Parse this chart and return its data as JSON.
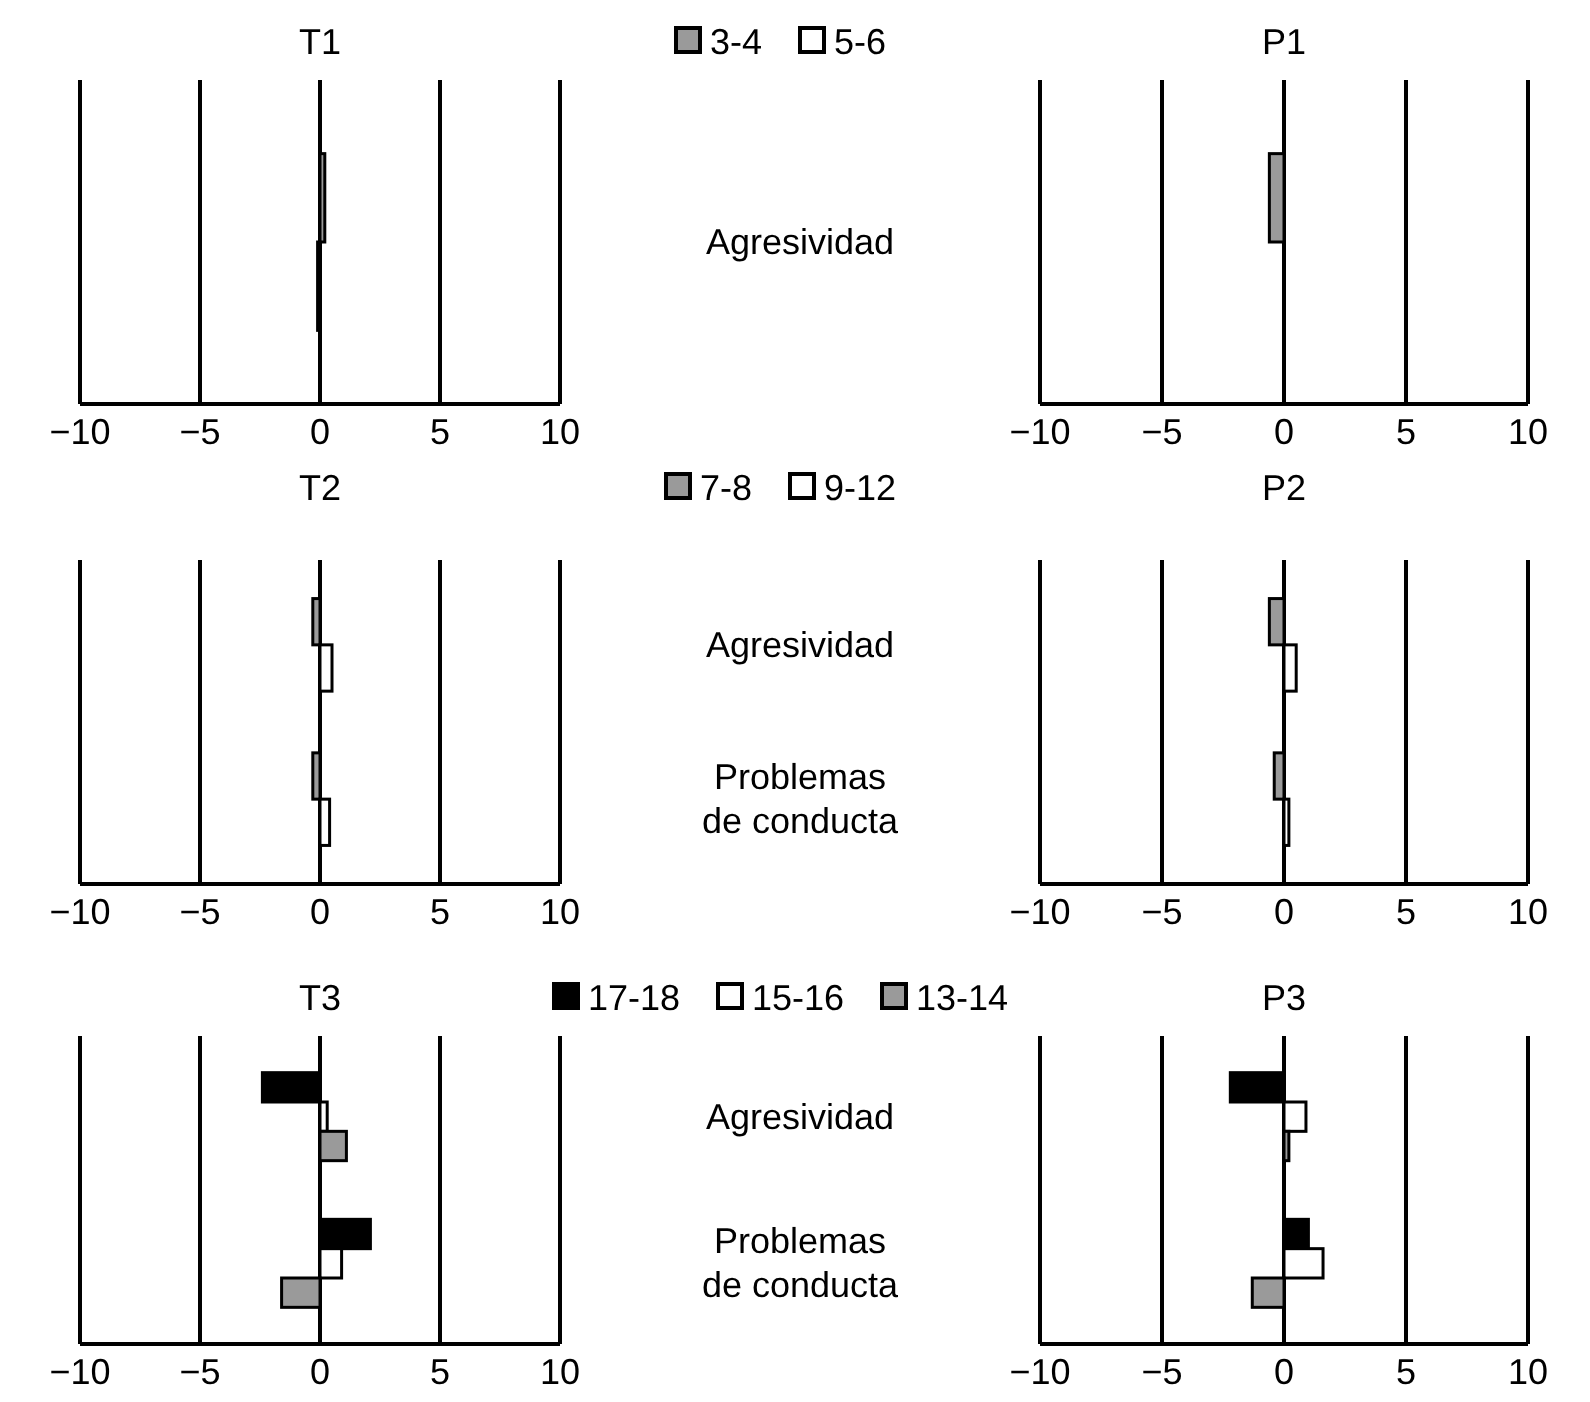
{
  "chart_data": [
    {
      "type": "bar",
      "orientation": "horizontal",
      "title": "T1",
      "categories": [
        null
      ],
      "xlim": [
        -10,
        10
      ],
      "xticks": [
        -10,
        -5,
        0,
        5,
        10
      ],
      "grid": "x",
      "legend": "top right",
      "tick_labels": "x",
      "series": [
        {
          "name": "3-4",
          "color": "#9a9a9a",
          "values": [
            0.2
          ]
        },
        {
          "name": "5-6",
          "color": "#ffffff",
          "values": [
            -0.1
          ]
        }
      ]
    },
    {
      "type": "bar",
      "orientation": "horizontal",
      "title": "P1",
      "categories": [
        "Agresividad"
      ],
      "xlim": [
        -10,
        10
      ],
      "xticks": [
        -10,
        -5,
        0,
        5,
        10
      ],
      "grid": "x",
      "series": [
        {
          "color": "#9a9a9a",
          "values": [
            -0.6
          ]
        },
        {
          "color": "#ffffff",
          "values": [
            0
          ]
        }
      ]
    },
    {
      "type": "bar",
      "orientation": "horizontal",
      "title": "T2",
      "categories": [
        null,
        null
      ],
      "xlim": [
        -10,
        10
      ],
      "xticks": [
        -10,
        -5,
        0,
        5,
        10
      ],
      "grid": "x",
      "legend": "top right",
      "tick_labels": "x",
      "series": [
        {
          "name": "7-8",
          "color": "#9a9a9a",
          "values": [
            -0.3,
            -0.3
          ]
        },
        {
          "name": "9-12",
          "color": "#ffffff",
          "values": [
            0.5,
            0.4
          ]
        }
      ]
    },
    {
      "type": "bar",
      "orientation": "horizontal",
      "title": "P2",
      "categories": [
        "Agresividad",
        "Problemas de conducta"
      ],
      "xlim": [
        -10,
        10
      ],
      "xticks": [
        -10,
        -5,
        0,
        5,
        10
      ],
      "grid": "x",
      "series": [
        {
          "color": "#9a9a9a",
          "values": [
            -0.6,
            -0.4
          ]
        },
        {
          "color": "#ffffff",
          "values": [
            0.5,
            0.2
          ]
        }
      ]
    },
    {
      "type": "bar",
      "orientation": "horizontal",
      "title": "T3",
      "categories": [
        null,
        null
      ],
      "xlim": [
        -10,
        10
      ],
      "xticks": [
        -10,
        -5,
        0,
        5,
        10
      ],
      "grid": "x",
      "legend": "top right",
      "tick_labels": "x",
      "series": [
        {
          "name": "17-18",
          "color": "#000000",
          "values": [
            -2.4,
            2.1
          ]
        },
        {
          "name": "15-16",
          "color": "#ffffff",
          "values": [
            0.3,
            0.9
          ]
        },
        {
          "name": "13-14",
          "color": "#9a9a9a",
          "values": [
            1.1,
            -1.6
          ]
        }
      ]
    },
    {
      "type": "bar",
      "orientation": "horizontal",
      "title": "P3",
      "categories": [
        "Agresividad",
        "Problemas de conducta"
      ],
      "xlim": [
        -10,
        10
      ],
      "xticks": [
        -10,
        -5,
        0,
        5,
        10
      ],
      "grid": "x",
      "series": [
        {
          "color": "#000000",
          "values": [
            -2.2,
            1.0
          ]
        },
        {
          "color": "#ffffff",
          "values": [
            0.9,
            1.6
          ]
        },
        {
          "color": "#9a9a9a",
          "values": [
            0.2,
            -1.3
          ]
        }
      ]
    }
  ]
}
